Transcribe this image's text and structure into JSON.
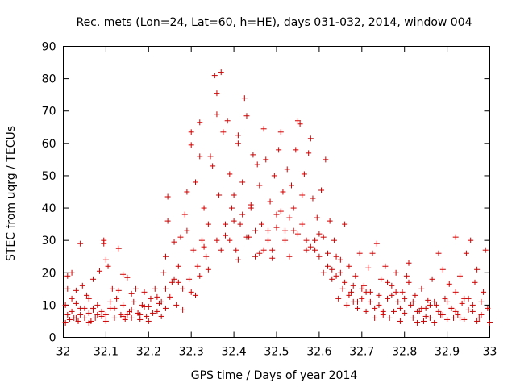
{
  "chart_data": {
    "type": "scatter",
    "title": "Rec. mets (Lon=24, Lat=60, h=HE), days 031-032, 2014, window 004",
    "xlabel": "GPS time / Days of year 2014",
    "ylabel": "STEC from uqrg / TECUs",
    "xlim": [
      32,
      33
    ],
    "ylim": [
      0,
      90
    ],
    "x_ticks": [
      "32",
      "32.1",
      "32.2",
      "32.3",
      "32.4",
      "32.5",
      "32.6",
      "32.7",
      "32.8",
      "32.9",
      "33"
    ],
    "y_ticks": [
      "0",
      "10",
      "20",
      "30",
      "40",
      "50",
      "60",
      "70",
      "80",
      "90"
    ],
    "grid": false,
    "legend": "none",
    "marker": "plus",
    "color": "#cc0000",
    "series": [
      {
        "name": "STEC",
        "points": [
          [
            32.005,
            4.5
          ],
          [
            32.005,
            10
          ],
          [
            32.01,
            15
          ],
          [
            32.01,
            19
          ],
          [
            32.015,
            5.5
          ],
          [
            32.02,
            8
          ],
          [
            32.02,
            20
          ],
          [
            32.025,
            6
          ],
          [
            32.03,
            10.5
          ],
          [
            32.03,
            14.5
          ],
          [
            32.035,
            5
          ],
          [
            32.04,
            29
          ],
          [
            32.04,
            7
          ],
          [
            32.045,
            16
          ],
          [
            32.05,
            9
          ],
          [
            32.05,
            6
          ],
          [
            32.055,
            13
          ],
          [
            32.06,
            7.5
          ],
          [
            32.06,
            12
          ],
          [
            32.065,
            5
          ],
          [
            32.07,
            8.5
          ],
          [
            32.07,
            18
          ],
          [
            32.075,
            6
          ],
          [
            32.08,
            7
          ],
          [
            32.085,
            20.5
          ],
          [
            32.09,
            8
          ],
          [
            32.09,
            6.5
          ],
          [
            32.095,
            30
          ],
          [
            32.095,
            29
          ],
          [
            32.1,
            24
          ],
          [
            32.1,
            7
          ],
          [
            32.105,
            22
          ],
          [
            32.11,
            9
          ],
          [
            32.115,
            15
          ],
          [
            32.12,
            6
          ],
          [
            32.125,
            12
          ],
          [
            32.13,
            27.5
          ],
          [
            32.13,
            14.5
          ],
          [
            32.135,
            7
          ],
          [
            32.14,
            19.5
          ],
          [
            32.14,
            10
          ],
          [
            32.145,
            5.5
          ],
          [
            32.15,
            18.5
          ],
          [
            32.155,
            8
          ],
          [
            32.16,
            13.5
          ],
          [
            32.16,
            6
          ],
          [
            32.165,
            11
          ],
          [
            32.17,
            15
          ],
          [
            32.175,
            7.5
          ],
          [
            32.18,
            5.5
          ],
          [
            32.185,
            10
          ],
          [
            32.19,
            14
          ],
          [
            32.195,
            6.5
          ],
          [
            32.2,
            9.5
          ],
          [
            32.205,
            12
          ],
          [
            32.21,
            7.5
          ],
          [
            32.215,
            15
          ],
          [
            32.22,
            8
          ],
          [
            32.225,
            10.5
          ],
          [
            32.23,
            6.5
          ],
          [
            32.235,
            20
          ],
          [
            32.24,
            25
          ],
          [
            32.24,
            9
          ],
          [
            32.245,
            36
          ],
          [
            32.245,
            43.5
          ],
          [
            32.25,
            12.5
          ],
          [
            32.255,
            17
          ],
          [
            32.26,
            29.5
          ],
          [
            32.265,
            10
          ],
          [
            32.27,
            22
          ],
          [
            32.275,
            31
          ],
          [
            32.28,
            15
          ],
          [
            32.285,
            38
          ],
          [
            32.29,
            33
          ],
          [
            32.29,
            45
          ],
          [
            32.295,
            18
          ],
          [
            32.3,
            59.5
          ],
          [
            32.3,
            63.5
          ],
          [
            32.305,
            27
          ],
          [
            32.31,
            48
          ],
          [
            32.315,
            22
          ],
          [
            32.32,
            56
          ],
          [
            32.32,
            66.5
          ],
          [
            32.325,
            30
          ],
          [
            32.33,
            40
          ],
          [
            32.335,
            25
          ],
          [
            32.34,
            35
          ],
          [
            32.345,
            56
          ],
          [
            32.35,
            53
          ],
          [
            32.355,
            81
          ],
          [
            32.36,
            75.5
          ],
          [
            32.36,
            69
          ],
          [
            32.365,
            44
          ],
          [
            32.37,
            82
          ],
          [
            32.375,
            63.5
          ],
          [
            32.38,
            35
          ],
          [
            32.385,
            67
          ],
          [
            32.39,
            50.5
          ],
          [
            32.395,
            40
          ],
          [
            32.4,
            44
          ],
          [
            32.405,
            27
          ],
          [
            32.41,
            62.5
          ],
          [
            32.41,
            60
          ],
          [
            32.415,
            35
          ],
          [
            32.42,
            48
          ],
          [
            32.425,
            74
          ],
          [
            32.43,
            68.5
          ],
          [
            32.435,
            31
          ],
          [
            32.44,
            40
          ],
          [
            32.445,
            56.5
          ],
          [
            32.45,
            25
          ],
          [
            32.455,
            53.5
          ],
          [
            32.46,
            47
          ],
          [
            32.465,
            35
          ],
          [
            32.47,
            64.5
          ],
          [
            32.475,
            55
          ],
          [
            32.48,
            30
          ],
          [
            32.485,
            42
          ],
          [
            32.49,
            27
          ],
          [
            32.495,
            50
          ],
          [
            32.5,
            38
          ],
          [
            32.505,
            58
          ],
          [
            32.51,
            63.5
          ],
          [
            32.515,
            45
          ],
          [
            32.52,
            33
          ],
          [
            32.525,
            52
          ],
          [
            32.53,
            25
          ],
          [
            32.535,
            47
          ],
          [
            32.54,
            40
          ],
          [
            32.545,
            58
          ],
          [
            32.55,
            67
          ],
          [
            32.555,
            66
          ],
          [
            32.56,
            35
          ],
          [
            32.565,
            50.5
          ],
          [
            32.57,
            27
          ],
          [
            32.575,
            57
          ],
          [
            32.58,
            61.5
          ],
          [
            32.585,
            43
          ],
          [
            32.59,
            30
          ],
          [
            32.595,
            37
          ],
          [
            32.6,
            25
          ],
          [
            32.605,
            45.5
          ],
          [
            32.61,
            31
          ],
          [
            32.615,
            55
          ],
          [
            32.62,
            22
          ],
          [
            32.625,
            36
          ],
          [
            32.63,
            18
          ],
          [
            32.635,
            30
          ],
          [
            32.64,
            25
          ],
          [
            32.645,
            12
          ],
          [
            32.65,
            20
          ],
          [
            32.655,
            15
          ],
          [
            32.66,
            35
          ],
          [
            32.665,
            10
          ],
          [
            32.67,
            22
          ],
          [
            32.675,
            14
          ],
          [
            32.68,
            11
          ],
          [
            32.685,
            19
          ],
          [
            32.69,
            9
          ],
          [
            32.695,
            26
          ],
          [
            32.7,
            12
          ],
          [
            32.705,
            16
          ],
          [
            32.71,
            8
          ],
          [
            32.715,
            21.5
          ],
          [
            32.72,
            14
          ],
          [
            32.725,
            26
          ],
          [
            32.73,
            6
          ],
          [
            32.735,
            29
          ],
          [
            32.74,
            10
          ],
          [
            32.745,
            18
          ],
          [
            32.75,
            7
          ],
          [
            32.755,
            22
          ],
          [
            32.76,
            12
          ],
          [
            32.765,
            6
          ],
          [
            32.77,
            16
          ],
          [
            32.775,
            8
          ],
          [
            32.78,
            20
          ],
          [
            32.785,
            11
          ],
          [
            32.79,
            5
          ],
          [
            32.795,
            14
          ],
          [
            32.8,
            7.5
          ],
          [
            32.805,
            19
          ],
          [
            32.81,
            23
          ],
          [
            32.815,
            10
          ],
          [
            32.82,
            6
          ],
          [
            32.825,
            13
          ],
          [
            32.83,
            4.5
          ],
          [
            32.835,
            8
          ],
          [
            32.84,
            15
          ],
          [
            32.845,
            5
          ],
          [
            32.85,
            9
          ],
          [
            32.855,
            11.5
          ],
          [
            32.86,
            6
          ],
          [
            32.865,
            18
          ],
          [
            32.87,
            4.5
          ],
          [
            32.875,
            10
          ],
          [
            32.88,
            26
          ],
          [
            32.885,
            7
          ],
          [
            32.89,
            21
          ],
          [
            32.895,
            12
          ],
          [
            32.9,
            5.5
          ],
          [
            32.905,
            16.5
          ],
          [
            32.91,
            9
          ],
          [
            32.915,
            6
          ],
          [
            32.92,
            31
          ],
          [
            32.92,
            14
          ],
          [
            32.925,
            7
          ],
          [
            32.93,
            19
          ],
          [
            32.935,
            10.5
          ],
          [
            32.94,
            5.5
          ],
          [
            32.945,
            26
          ],
          [
            32.95,
            12
          ],
          [
            32.955,
            30
          ],
          [
            32.96,
            8
          ],
          [
            32.965,
            17
          ],
          [
            32.97,
            21
          ],
          [
            32.975,
            6
          ],
          [
            32.98,
            11
          ],
          [
            32.985,
            14
          ],
          [
            32.99,
            27
          ],
          [
            32.995,
            9
          ],
          [
            33.0,
            4.5
          ],
          [
            32.01,
            7
          ],
          [
            32.02,
            12
          ],
          [
            32.04,
            9
          ],
          [
            32.06,
            4.5
          ],
          [
            32.08,
            10
          ],
          [
            32.1,
            5
          ],
          [
            32.12,
            9
          ],
          [
            32.14,
            6.5
          ],
          [
            32.16,
            8.5
          ],
          [
            32.18,
            7
          ],
          [
            32.2,
            5
          ],
          [
            32.22,
            12.5
          ],
          [
            32.24,
            15
          ],
          [
            32.26,
            18
          ],
          [
            32.28,
            8.5
          ],
          [
            32.3,
            14
          ],
          [
            32.32,
            19
          ],
          [
            32.34,
            21
          ],
          [
            32.36,
            30
          ],
          [
            32.38,
            31.5
          ],
          [
            32.4,
            36
          ],
          [
            32.42,
            38
          ],
          [
            32.44,
            41
          ],
          [
            32.46,
            26
          ],
          [
            32.48,
            33
          ],
          [
            32.5,
            34
          ],
          [
            32.52,
            30
          ],
          [
            32.54,
            33
          ],
          [
            32.56,
            44
          ],
          [
            32.58,
            28
          ],
          [
            32.6,
            32
          ],
          [
            32.62,
            26
          ],
          [
            32.64,
            19
          ],
          [
            32.66,
            17
          ],
          [
            32.68,
            16
          ],
          [
            32.7,
            15
          ],
          [
            32.72,
            11
          ],
          [
            32.74,
            13
          ],
          [
            32.76,
            17
          ],
          [
            32.78,
            14
          ],
          [
            32.8,
            12
          ],
          [
            32.82,
            11
          ],
          [
            32.84,
            9
          ],
          [
            32.86,
            10
          ],
          [
            32.88,
            8
          ],
          [
            32.9,
            11
          ],
          [
            32.92,
            8
          ],
          [
            32.94,
            12
          ],
          [
            32.96,
            10
          ],
          [
            32.98,
            7
          ],
          [
            32.03,
            6
          ],
          [
            32.07,
            9
          ],
          [
            32.11,
            11
          ],
          [
            32.15,
            7
          ],
          [
            32.19,
            9.5
          ],
          [
            32.23,
            11
          ],
          [
            32.27,
            17
          ],
          [
            32.31,
            13
          ],
          [
            32.33,
            28
          ],
          [
            32.37,
            27
          ],
          [
            32.39,
            30
          ],
          [
            32.41,
            24
          ],
          [
            32.43,
            31
          ],
          [
            32.45,
            33
          ],
          [
            32.47,
            27
          ],
          [
            32.49,
            24.5
          ],
          [
            32.51,
            39
          ],
          [
            32.53,
            37
          ],
          [
            32.55,
            32
          ],
          [
            32.57,
            30
          ],
          [
            32.59,
            27
          ],
          [
            32.61,
            20
          ],
          [
            32.63,
            21
          ],
          [
            32.65,
            24
          ],
          [
            32.67,
            13
          ],
          [
            32.69,
            11
          ],
          [
            32.71,
            14
          ],
          [
            32.73,
            9
          ],
          [
            32.75,
            8
          ],
          [
            32.77,
            13
          ],
          [
            32.79,
            9
          ],
          [
            32.81,
            17
          ],
          [
            32.83,
            8
          ],
          [
            32.85,
            6.5
          ],
          [
            32.87,
            11
          ],
          [
            32.89,
            7
          ],
          [
            32.91,
            9
          ],
          [
            32.93,
            6
          ],
          [
            32.95,
            8.5
          ],
          [
            32.97,
            5
          ]
        ]
      }
    ]
  }
}
